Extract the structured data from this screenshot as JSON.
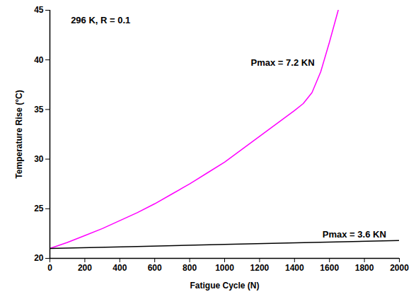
{
  "chart_data": {
    "type": "line",
    "x_label": "Fatigue Cycle (N)",
    "y_label": "Temperature Rise (°C)",
    "xlim": [
      0,
      2000
    ],
    "xticks": [
      0,
      200,
      400,
      600,
      800,
      1000,
      1200,
      1400,
      1600,
      1800,
      2000
    ],
    "ylim": [
      20,
      45
    ],
    "yticks": [
      20,
      25,
      30,
      35,
      40,
      45
    ],
    "series": [
      {
        "color": "#ff00ff",
        "x": [
          0,
          100,
          200,
          300,
          400,
          500,
          600,
          700,
          800,
          900,
          1000,
          1100,
          1200,
          1300,
          1400,
          1450,
          1500,
          1550,
          1600,
          1650
        ],
        "values": [
          21.0,
          21.6,
          22.3,
          23.0,
          23.8,
          24.6,
          25.5,
          26.5,
          27.5,
          28.6,
          29.7,
          31.0,
          32.3,
          33.6,
          34.9,
          35.6,
          36.7,
          38.8,
          41.8,
          45.0
        ]
      },
      {
        "color": "#000000",
        "x": [
          0,
          500,
          1000,
          1500,
          2000
        ],
        "values": [
          21.0,
          21.2,
          21.4,
          21.6,
          21.8
        ]
      }
    ],
    "annotations": [
      {
        "text": "296 K, R = 0.1",
        "x": 120,
        "y": 44
      },
      {
        "text": "Pmax = 7.2 KN",
        "x": 1150,
        "y": 39.7
      },
      {
        "text": "Pmax = 3.6 KN",
        "x": 1560,
        "y": 22.4
      }
    ]
  }
}
